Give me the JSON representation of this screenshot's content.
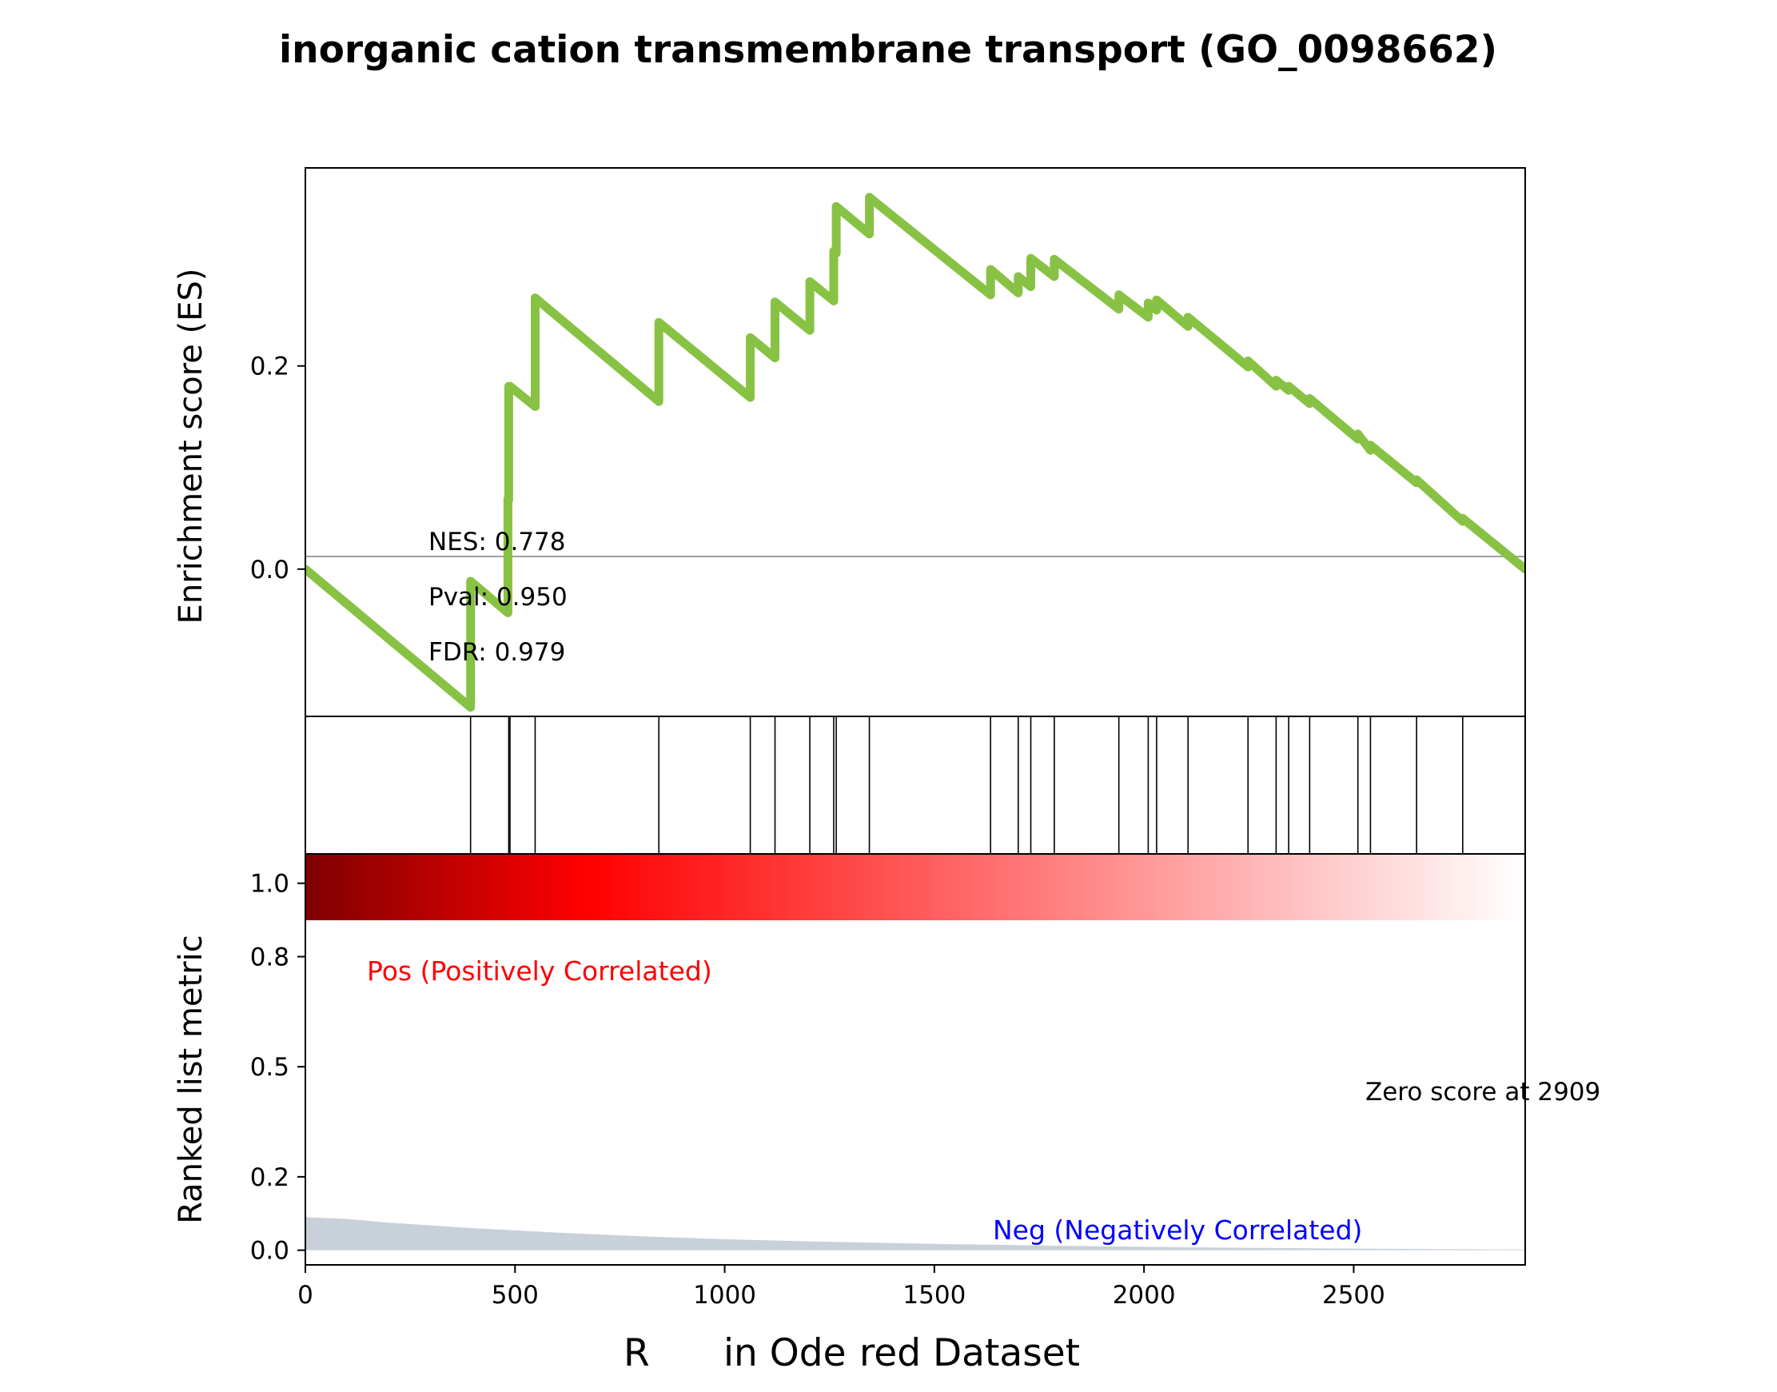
{
  "colors": {
    "es_line": "#88c244",
    "axis": "#000000",
    "zero_line": "#808080",
    "pos_label": "#ff0000",
    "neg_label": "#0000ff",
    "metric_fill": "#c8d1da",
    "heat_start": "#800000",
    "heat_mid": "#ff0000",
    "heat_end": "#ffffff"
  },
  "chart_data": {
    "type": "line",
    "title": "inorganic cation transmembrane transport (GO_0098662)",
    "xlabel": "Rank in Ordered Dataset",
    "xlabel_fragments": [
      "R",
      "in Ode",
      "red Dataset"
    ],
    "xlim": [
      0,
      2909
    ],
    "xticks": [
      "0",
      "500",
      "1000",
      "1500",
      "2000",
      "2500"
    ],
    "enrichment": {
      "ylabel": "Enrichment score (ES)",
      "ylim": [
        -0.145,
        0.395
      ],
      "yticks": [
        "0.2",
        "0.0"
      ],
      "zero_line": 0,
      "stats": [
        "NES: 0.778",
        "Pval: 0.950",
        "FDR: 0.979"
      ],
      "x": [
        0,
        394,
        394,
        483,
        483,
        485,
        485,
        488,
        488,
        548,
        548,
        843,
        843,
        1061,
        1061,
        1120,
        1120,
        1203,
        1203,
        1260,
        1260,
        1266,
        1266,
        1345,
        1345,
        1634,
        1634,
        1700,
        1700,
        1730,
        1730,
        1786,
        1786,
        1940,
        1940,
        2010,
        2010,
        2030,
        2030,
        2105,
        2105,
        2248,
        2248,
        2315,
        2315,
        2345,
        2345,
        2395,
        2395,
        2510,
        2510,
        2540,
        2540,
        2650,
        2650,
        2760,
        2760,
        2909
      ],
      "y": [
        0,
        -0.136,
        -0.012,
        -0.043,
        0.069,
        0.068,
        0.18,
        0.179,
        0.18,
        0.16,
        0.267,
        0.165,
        0.243,
        0.169,
        0.228,
        0.208,
        0.263,
        0.235,
        0.283,
        0.264,
        0.313,
        0.311,
        0.357,
        0.33,
        0.366,
        0.27,
        0.295,
        0.272,
        0.288,
        0.278,
        0.306,
        0.288,
        0.305,
        0.256,
        0.27,
        0.248,
        0.262,
        0.255,
        0.265,
        0.239,
        0.248,
        0.199,
        0.205,
        0.18,
        0.186,
        0.176,
        0.18,
        0.163,
        0.168,
        0.128,
        0.133,
        0.117,
        0.122,
        0.085,
        0.088,
        0.047,
        0.05,
        0.0
      ]
    },
    "hits": [
      394,
      485,
      488,
      548,
      843,
      1061,
      1120,
      1203,
      1260,
      1266,
      1345,
      1634,
      1700,
      1730,
      1786,
      1940,
      2010,
      2030,
      2105,
      2248,
      2315,
      2345,
      2395,
      2510,
      2540,
      2650,
      2760
    ],
    "ranked_metric": {
      "ylabel": "Ranked list metric",
      "ylim": [
        -0.04,
        1.08
      ],
      "yticks": [
        "1.0",
        "0.8",
        "0.5",
        "0.2",
        "0.0"
      ],
      "ytick_values": [
        1.0,
        0.8,
        0.5,
        0.2,
        0.0
      ],
      "pos_label": "Pos (Positively Correlated)",
      "neg_label": "Neg (Negatively Correlated)",
      "zero_score_label": "Zero score at 2909",
      "x": [
        0,
        100,
        200,
        400,
        600,
        800,
        1000,
        1200,
        1500,
        1800,
        2100,
        2400,
        2700,
        2909
      ],
      "y": [
        0.09,
        0.085,
        0.075,
        0.06,
        0.048,
        0.038,
        0.03,
        0.024,
        0.017,
        0.012,
        0.008,
        0.005,
        0.003,
        0.002
      ]
    }
  }
}
